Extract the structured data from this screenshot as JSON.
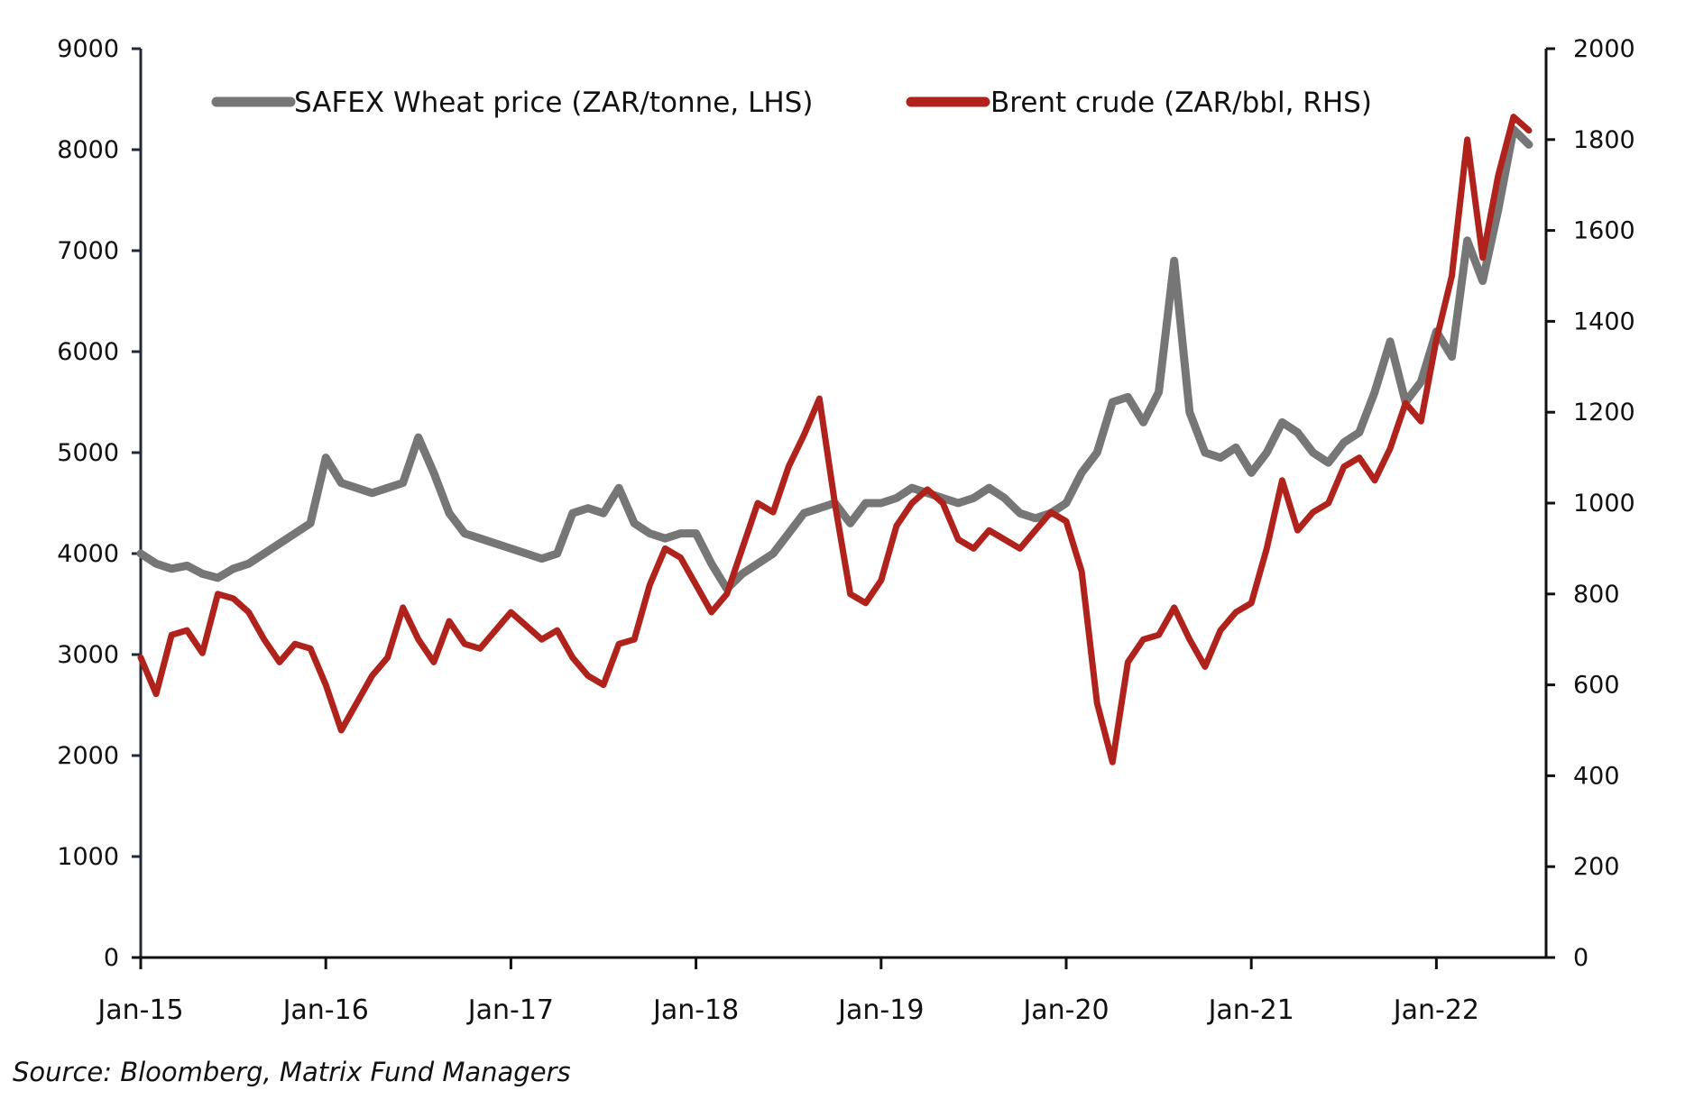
{
  "chart_data": {
    "type": "line",
    "title": "",
    "source": "Source: Bloomberg, Matrix Fund Managers",
    "x_tick_labels": [
      "Jan-15",
      "Jan-16",
      "Jan-17",
      "Jan-18",
      "Jan-19",
      "Jan-20",
      "Jan-21",
      "Jan-22"
    ],
    "x_range": [
      "2015-01",
      "2022-08"
    ],
    "x_frequency": "monthly",
    "x_start": "2015-01",
    "left_axis": {
      "label": "",
      "ylim": [
        0,
        9000
      ],
      "ticks": [
        "0",
        "1000",
        "2000",
        "3000",
        "4000",
        "5000",
        "6000",
        "7000",
        "8000",
        "9000"
      ]
    },
    "right_axis": {
      "label": "",
      "ylim": [
        0,
        2000
      ],
      "ticks": [
        "0",
        "200",
        "400",
        "600",
        "800",
        "1000",
        "1200",
        "1400",
        "1600",
        "1800",
        "2000"
      ]
    },
    "grid": false,
    "legend": {
      "position": "top",
      "entries": [
        "SAFEX Wheat price (ZAR/tonne, LHS)",
        "Brent crude (ZAR/bbl, RHS)"
      ]
    },
    "series": [
      {
        "name": "SAFEX Wheat price (ZAR/tonne, LHS)",
        "axis": "left",
        "color": "#767676",
        "values": [
          4000,
          3900,
          3850,
          3880,
          3800,
          3760,
          3850,
          3900,
          4000,
          4100,
          4200,
          4300,
          4950,
          4700,
          4650,
          4600,
          4650,
          4700,
          5150,
          4800,
          4400,
          4200,
          4150,
          4100,
          4050,
          4000,
          3950,
          4000,
          4400,
          4450,
          4400,
          4650,
          4300,
          4200,
          4150,
          4200,
          4200,
          3900,
          3650,
          3800,
          3900,
          4000,
          4200,
          4400,
          4450,
          4500,
          4300,
          4500,
          4500,
          4550,
          4650,
          4600,
          4550,
          4500,
          4550,
          4650,
          4550,
          4400,
          4350,
          4400,
          4500,
          4800,
          5000,
          5500,
          5550,
          5300,
          5600,
          6900,
          5400,
          5000,
          4950,
          5050,
          4800,
          5000,
          5300,
          5200,
          5000,
          4900,
          5100,
          5200,
          5600,
          6100,
          5500,
          5700,
          6200,
          5950,
          7100,
          6700,
          7400,
          8200,
          8050
        ]
      },
      {
        "name": "Brent crude (ZAR/bbl, RHS)",
        "axis": "right",
        "color": "#b0231c",
        "values": [
          660,
          580,
          710,
          720,
          670,
          800,
          790,
          760,
          700,
          650,
          690,
          680,
          600,
          500,
          560,
          620,
          660,
          770,
          700,
          650,
          740,
          690,
          680,
          720,
          760,
          730,
          700,
          720,
          660,
          620,
          600,
          690,
          700,
          820,
          900,
          880,
          820,
          760,
          800,
          900,
          1000,
          980,
          1080,
          1150,
          1230,
          1000,
          800,
          780,
          830,
          950,
          1000,
          1030,
          1000,
          920,
          900,
          940,
          920,
          900,
          940,
          980,
          960,
          850,
          560,
          430,
          650,
          700,
          710,
          770,
          700,
          640,
          720,
          760,
          780,
          900,
          1050,
          940,
          980,
          1000,
          1080,
          1100,
          1050,
          1120,
          1220,
          1180,
          1360,
          1500,
          1800,
          1540,
          1720,
          1850,
          1820
        ]
      }
    ]
  }
}
